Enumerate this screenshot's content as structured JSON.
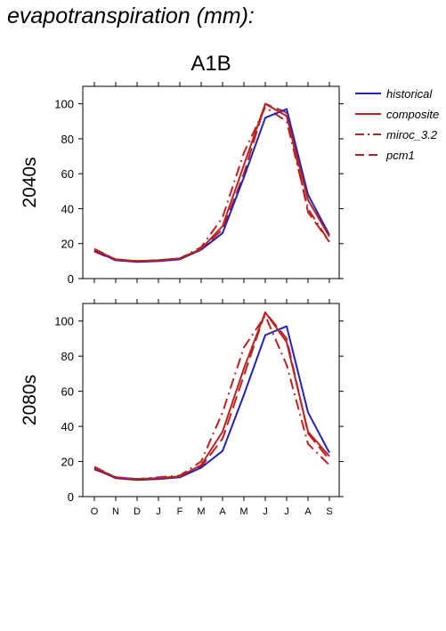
{
  "page_title": "evapotranspiration (mm):",
  "chart_data": {
    "type": "line",
    "scenario": "A1B",
    "categories": [
      "O",
      "N",
      "D",
      "J",
      "F",
      "M",
      "A",
      "M",
      "J",
      "J",
      "A",
      "S"
    ],
    "ylim": [
      0,
      110
    ],
    "yticks": [
      0,
      20,
      40,
      60,
      80,
      100
    ],
    "legend": {
      "placement": "right",
      "entries": [
        "historical",
        "composite",
        "miroc_3.2",
        "pcm1"
      ]
    },
    "series_styles": [
      {
        "name": "historical",
        "color": "#2222bb",
        "dash": "solid"
      },
      {
        "name": "composite",
        "color": "#bb2222",
        "dash": "solid"
      },
      {
        "name": "miroc_3.2",
        "color": "#bb2222",
        "dash": "dashdot"
      },
      {
        "name": "pcm1",
        "color": "#bb2222",
        "dash": "dashed"
      }
    ],
    "panels": [
      {
        "label": "2040s",
        "series": [
          {
            "name": "historical",
            "values": [
              16,
              10.5,
              9.5,
              10,
              11,
              16.5,
              26,
              58,
              92,
              97,
              48,
              25
            ]
          },
          {
            "name": "composite",
            "values": [
              16.5,
              11,
              10,
              10.5,
              11.5,
              17,
              30,
              65,
              100,
              93,
              45,
              24
            ]
          },
          {
            "name": "miroc_3.2",
            "values": [
              17,
              11,
              10,
              10.5,
              11.5,
              18,
              35,
              72,
              98,
              90,
              40,
              21
            ]
          },
          {
            "name": "pcm1",
            "values": [
              15.5,
              10.5,
              10,
              10.5,
              11.5,
              17,
              28,
              60,
              100,
              95,
              38,
              21
            ]
          }
        ]
      },
      {
        "label": "2080s",
        "series": [
          {
            "name": "historical",
            "values": [
              16,
              10.5,
              9.5,
              10,
              11,
              16.5,
              26,
              58,
              92,
              97,
              48,
              25
            ]
          },
          {
            "name": "composite",
            "values": [
              16.5,
              11,
              10,
              10.5,
              11.5,
              18,
              37,
              73,
              105,
              88,
              37,
              23
            ]
          },
          {
            "name": "miroc_3.2",
            "values": [
              17,
              11,
              10,
              11,
              12,
              20,
              48,
              85,
              103,
              75,
              30,
              18
            ]
          },
          {
            "name": "pcm1",
            "values": [
              15.5,
              11,
              10,
              10.5,
              11.5,
              17,
              33,
              69,
              105,
              90,
              36,
              21
            ]
          }
        ]
      }
    ]
  }
}
